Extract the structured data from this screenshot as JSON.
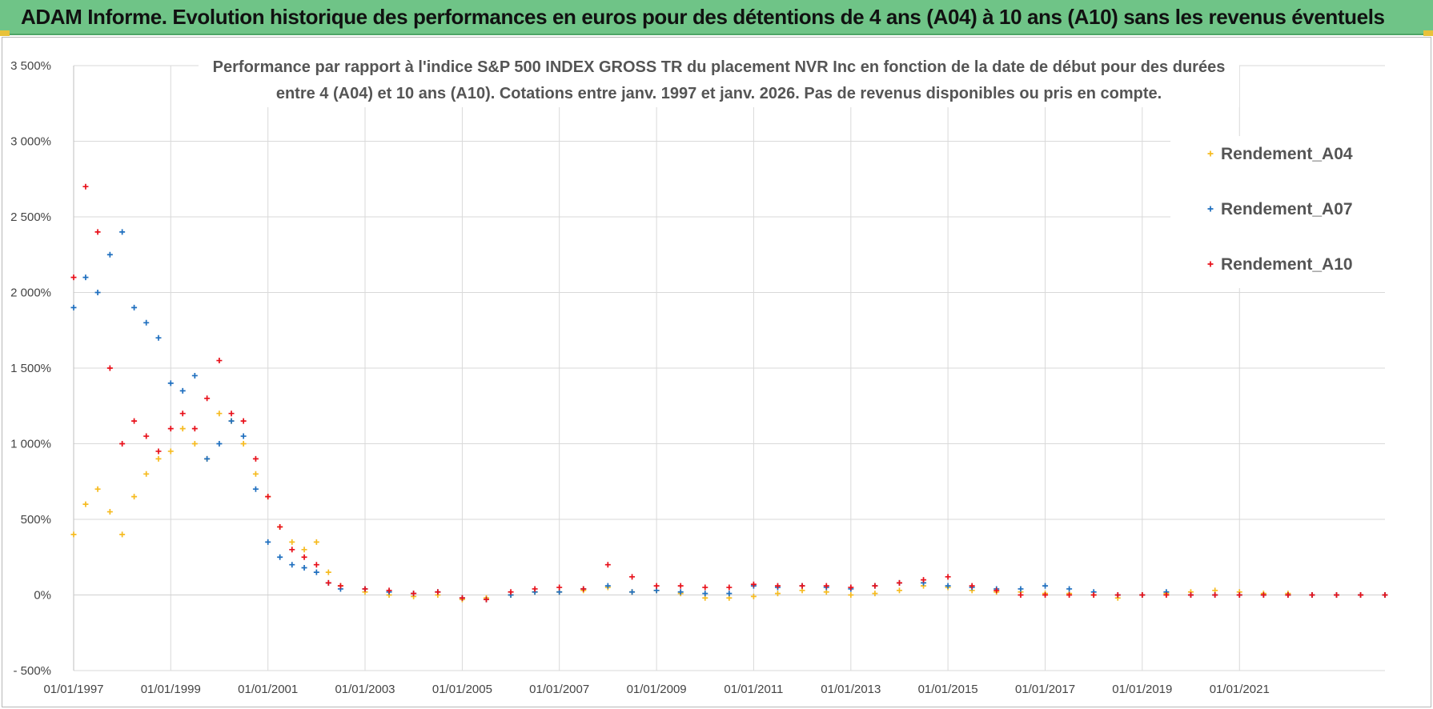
{
  "header": {
    "title": "ADAM Informe. Evolution historique des performances en euros pour des détentions de 4 ans (A04) à 10 ans (A10) sans les revenus éventuels"
  },
  "colors": {
    "header_bg": "#6fc487",
    "A04": "#f6bb20",
    "A07": "#1f6fbf",
    "A10": "#e8101a",
    "grid": "#d9d9d9"
  },
  "chart_data": {
    "type": "scatter",
    "marker": "plus",
    "title_lines": [
      "Performance par rapport à l'indice S&P 500 INDEX GROSS TR  du placement NVR Inc en fonction de la date de début pour des durées",
      "entre 4 (A04) et 10 ans (A10).  Cotations entre janv. 1997 et janv. 2026. Pas de revenus disponibles ou pris en compte."
    ],
    "xlabel": "",
    "ylabel": "",
    "xlim": [
      "1997-01-01",
      "2023-12-31"
    ],
    "ylim": [
      -500,
      3500
    ],
    "y_ticks": [
      -500,
      0,
      500,
      1000,
      1500,
      2000,
      2500,
      3000,
      3500
    ],
    "y_tick_labels": [
      "- 500%",
      "0%",
      "500%",
      "1 000%",
      "1 500%",
      "2 000%",
      "2 500%",
      "3 000%",
      "3 500%"
    ],
    "x_ticks": [
      "1997-01-01",
      "1999-01-01",
      "2001-01-01",
      "2003-01-01",
      "2005-01-01",
      "2007-01-01",
      "2009-01-01",
      "2011-01-01",
      "2013-01-01",
      "2015-01-01",
      "2017-01-01",
      "2019-01-01",
      "2021-01-01"
    ],
    "x_tick_labels": [
      "01/01/1997",
      "01/01/1999",
      "01/01/2001",
      "01/01/2003",
      "01/01/2005",
      "01/01/2007",
      "01/01/2009",
      "01/01/2011",
      "01/01/2013",
      "01/01/2015",
      "01/01/2017",
      "01/01/2019",
      "01/01/2021"
    ],
    "grid": true,
    "legend_position": "top-right",
    "series": [
      {
        "name": "Rendement_A04",
        "color": "#f6bb20",
        "x": [
          "1997-01-01",
          "1997-04-01",
          "1997-07-01",
          "1997-10-01",
          "1998-01-01",
          "1998-04-01",
          "1998-07-01",
          "1998-10-01",
          "1999-01-01",
          "1999-04-01",
          "1999-07-01",
          "1999-10-01",
          "2000-01-01",
          "2000-04-01",
          "2000-07-01",
          "2000-10-01",
          "2001-01-01",
          "2001-04-01",
          "2001-07-01",
          "2001-10-01",
          "2002-01-01",
          "2002-04-01",
          "2002-07-01",
          "2003-01-01",
          "2003-07-01",
          "2004-01-01",
          "2004-07-01",
          "2005-01-01",
          "2005-07-01",
          "2006-01-01",
          "2006-07-01",
          "2007-01-01",
          "2007-07-01",
          "2008-01-01",
          "2008-07-01",
          "2009-01-01",
          "2009-07-01",
          "2010-01-01",
          "2010-07-01",
          "2011-01-01",
          "2011-07-01",
          "2012-01-01",
          "2012-07-01",
          "2013-01-01",
          "2013-07-01",
          "2014-01-01",
          "2014-07-01",
          "2015-01-01",
          "2015-07-01",
          "2016-01-01",
          "2016-07-01",
          "2017-01-01",
          "2017-07-01",
          "2018-01-01",
          "2018-07-01",
          "2019-01-01",
          "2019-07-01",
          "2020-01-01",
          "2020-07-01",
          "2021-01-01",
          "2021-07-01",
          "2022-01-01",
          "2022-07-01",
          "2023-01-01",
          "2023-07-01",
          "2023-12-31"
        ],
        "values": [
          400,
          600,
          700,
          550,
          400,
          650,
          800,
          900,
          950,
          1100,
          1000,
          900,
          1200,
          1150,
          1000,
          800,
          650,
          450,
          350,
          300,
          350,
          150,
          60,
          20,
          0,
          -10,
          0,
          -30,
          -20,
          0,
          20,
          20,
          30,
          50,
          20,
          30,
          10,
          -20,
          -20,
          -10,
          10,
          30,
          20,
          0,
          10,
          30,
          60,
          50,
          30,
          20,
          20,
          10,
          10,
          0,
          -20,
          0,
          10,
          20,
          30,
          20,
          10,
          10,
          0,
          0,
          0,
          0
        ]
      },
      {
        "name": "Rendement_A07",
        "color": "#1f6fbf",
        "x": [
          "1997-01-01",
          "1997-04-01",
          "1997-07-01",
          "1997-10-01",
          "1998-01-01",
          "1998-04-01",
          "1998-07-01",
          "1998-10-01",
          "1999-01-01",
          "1999-04-01",
          "1999-07-01",
          "1999-10-01",
          "2000-01-01",
          "2000-04-01",
          "2000-07-01",
          "2000-10-01",
          "2001-01-01",
          "2001-04-01",
          "2001-07-01",
          "2001-10-01",
          "2002-01-01",
          "2002-04-01",
          "2002-07-01",
          "2003-01-01",
          "2003-07-01",
          "2004-01-01",
          "2004-07-01",
          "2005-01-01",
          "2005-07-01",
          "2006-01-01",
          "2006-07-01",
          "2007-01-01",
          "2007-07-01",
          "2008-01-01",
          "2008-07-01",
          "2009-01-01",
          "2009-07-01",
          "2010-01-01",
          "2010-07-01",
          "2011-01-01",
          "2011-07-01",
          "2012-01-01",
          "2012-07-01",
          "2013-01-01",
          "2013-07-01",
          "2014-01-01",
          "2014-07-01",
          "2015-01-01",
          "2015-07-01",
          "2016-01-01",
          "2016-07-01",
          "2017-01-01",
          "2017-07-01",
          "2018-01-01",
          "2018-07-01",
          "2019-01-01",
          "2019-07-01",
          "2020-01-01",
          "2020-07-01",
          "2021-01-01",
          "2021-07-01",
          "2022-01-01",
          "2022-07-01",
          "2023-01-01",
          "2023-07-01",
          "2023-12-31"
        ],
        "values": [
          1900,
          2100,
          2000,
          2250,
          2400,
          1900,
          1800,
          1700,
          1400,
          1350,
          1450,
          900,
          1000,
          1150,
          1050,
          700,
          350,
          250,
          200,
          180,
          150,
          80,
          40,
          40,
          20,
          10,
          20,
          -20,
          -30,
          0,
          20,
          20,
          40,
          60,
          20,
          30,
          20,
          10,
          10,
          60,
          50,
          60,
          50,
          40,
          60,
          80,
          80,
          60,
          50,
          40,
          40,
          60,
          40,
          20,
          0,
          0,
          20,
          0,
          0,
          0,
          0,
          0,
          0,
          0,
          0,
          0
        ]
      },
      {
        "name": "Rendement_A10",
        "color": "#e8101a",
        "x": [
          "1997-01-01",
          "1997-04-01",
          "1997-07-01",
          "1997-10-01",
          "1998-01-01",
          "1998-04-01",
          "1998-07-01",
          "1998-10-01",
          "1999-01-01",
          "1999-04-01",
          "1999-07-01",
          "1999-10-01",
          "2000-01-01",
          "2000-04-01",
          "2000-07-01",
          "2000-10-01",
          "2001-01-01",
          "2001-04-01",
          "2001-07-01",
          "2001-10-01",
          "2002-01-01",
          "2002-04-01",
          "2002-07-01",
          "2003-01-01",
          "2003-07-01",
          "2004-01-01",
          "2004-07-01",
          "2005-01-01",
          "2005-07-01",
          "2006-01-01",
          "2006-07-01",
          "2007-01-01",
          "2007-07-01",
          "2008-01-01",
          "2008-07-01",
          "2009-01-01",
          "2009-07-01",
          "2010-01-01",
          "2010-07-01",
          "2011-01-01",
          "2011-07-01",
          "2012-01-01",
          "2012-07-01",
          "2013-01-01",
          "2013-07-01",
          "2014-01-01",
          "2014-07-01",
          "2015-01-01",
          "2015-07-01",
          "2016-01-01",
          "2016-07-01",
          "2017-01-01",
          "2017-07-01",
          "2018-01-01",
          "2018-07-01",
          "2019-01-01",
          "2019-07-01",
          "2020-01-01",
          "2020-07-01",
          "2021-01-01",
          "2021-07-01",
          "2022-01-01",
          "2022-07-01",
          "2023-01-01",
          "2023-07-01",
          "2023-12-31"
        ],
        "values": [
          2100,
          2700,
          2400,
          1500,
          1000,
          1150,
          1050,
          950,
          1100,
          1200,
          1100,
          1300,
          1550,
          1200,
          1150,
          900,
          650,
          450,
          300,
          250,
          200,
          80,
          60,
          40,
          30,
          10,
          20,
          -20,
          -30,
          20,
          40,
          50,
          40,
          200,
          120,
          60,
          60,
          50,
          50,
          70,
          60,
          60,
          60,
          50,
          60,
          80,
          100,
          120,
          60,
          30,
          0,
          0,
          0,
          0,
          0,
          0,
          0,
          0,
          0,
          0,
          0,
          0,
          0,
          0,
          0,
          0
        ]
      }
    ]
  }
}
